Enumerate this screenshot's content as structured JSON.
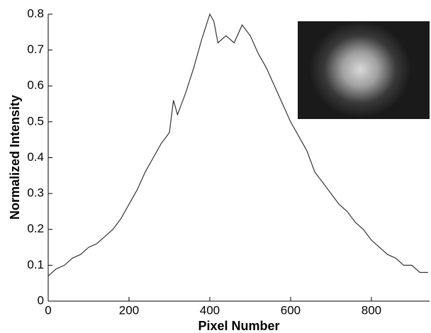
{
  "chart_data": {
    "type": "line",
    "xlabel": "Pixel Number",
    "ylabel": "Normalized Intensity",
    "x": [
      0,
      20,
      40,
      60,
      80,
      100,
      120,
      140,
      160,
      180,
      200,
      220,
      240,
      260,
      280,
      300,
      310,
      320,
      340,
      360,
      380,
      400,
      410,
      420,
      440,
      460,
      480,
      500,
      520,
      540,
      560,
      580,
      600,
      620,
      640,
      660,
      680,
      700,
      720,
      740,
      760,
      780,
      800,
      820,
      840,
      860,
      880,
      900,
      920,
      940
    ],
    "values": [
      0.07,
      0.09,
      0.1,
      0.12,
      0.13,
      0.15,
      0.16,
      0.18,
      0.2,
      0.23,
      0.27,
      0.31,
      0.36,
      0.4,
      0.44,
      0.47,
      0.56,
      0.52,
      0.58,
      0.65,
      0.73,
      0.8,
      0.78,
      0.72,
      0.74,
      0.72,
      0.77,
      0.74,
      0.69,
      0.65,
      0.6,
      0.55,
      0.5,
      0.46,
      0.42,
      0.36,
      0.33,
      0.3,
      0.27,
      0.25,
      0.22,
      0.2,
      0.17,
      0.15,
      0.13,
      0.12,
      0.1,
      0.1,
      0.08,
      0.08
    ],
    "color": "#333333",
    "xlim": [
      0,
      944
    ],
    "ylim": [
      0,
      0.8
    ],
    "xticks": [
      0,
      200,
      400,
      600,
      800
    ],
    "yticks": [
      0,
      0.1,
      0.2,
      0.3,
      0.4,
      0.5,
      0.6,
      0.7,
      0.8
    ]
  }
}
